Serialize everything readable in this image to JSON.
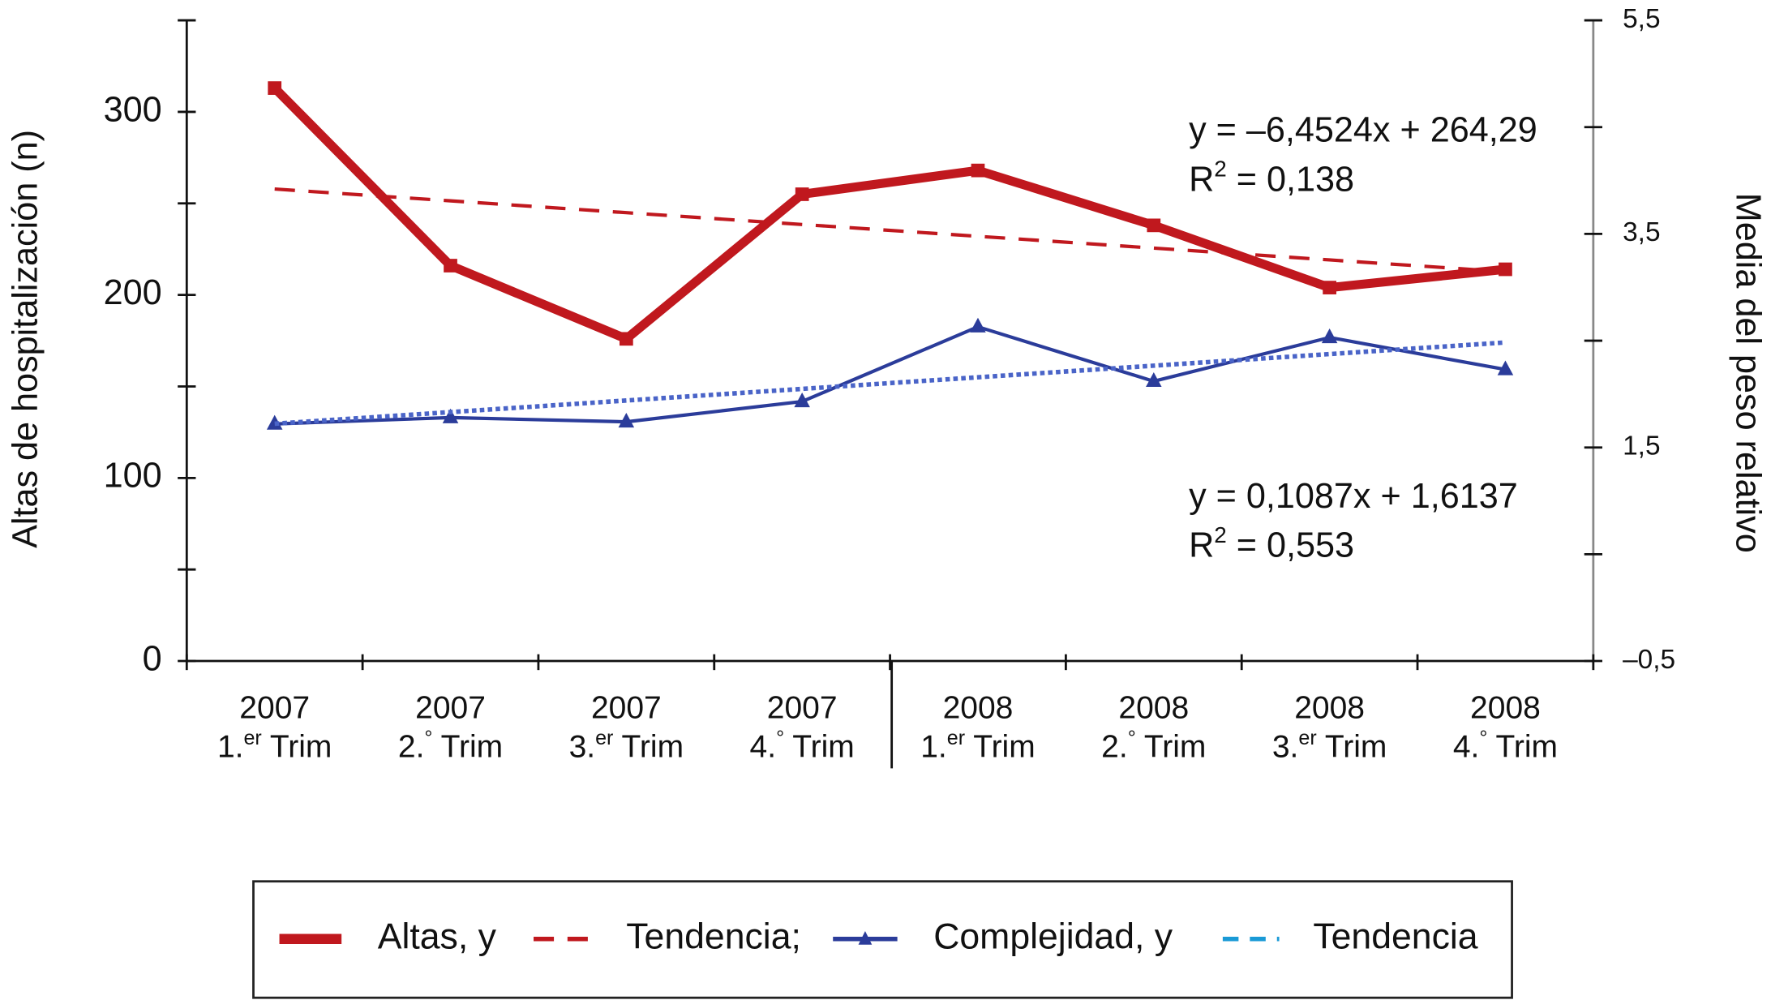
{
  "chart_data": {
    "type": "line",
    "y_label": "Altas de hospitalización (n)",
    "y2_label": "Media del peso relativo",
    "categories": [
      {
        "year": "2007",
        "num": "1.",
        "sup": "er",
        "trim": " Trim"
      },
      {
        "year": "2007",
        "num": "2.",
        "sup": "°",
        "trim": " Trim"
      },
      {
        "year": "2007",
        "num": "3.",
        "sup": "er",
        "trim": " Trim"
      },
      {
        "year": "2007",
        "num": "4.",
        "sup": "°",
        "trim": " Trim"
      },
      {
        "year": "2008",
        "num": "1.",
        "sup": "er",
        "trim": " Trim"
      },
      {
        "year": "2008",
        "num": "2.",
        "sup": "°",
        "trim": " Trim"
      },
      {
        "year": "2008",
        "num": "3.",
        "sup": "er",
        "trim": " Trim"
      },
      {
        "year": "2008",
        "num": "4.",
        "sup": "°",
        "trim": " Trim"
      }
    ],
    "series": [
      {
        "name": "Altas, y",
        "color": "#c0181e",
        "style": "solid",
        "width": 8,
        "marker": "square",
        "axis": "y",
        "values": [
          313,
          216,
          176,
          255,
          268,
          238,
          204,
          214
        ]
      },
      {
        "name": "Tendencia;",
        "color": "#c0181e",
        "style": "dashed",
        "width": 3,
        "axis": "y",
        "values": [
          257.84,
          251.39,
          244.93,
          238.48,
          232.03,
          225.58,
          219.12,
          212.67
        ]
      },
      {
        "name": "Complejidad, y",
        "color": "#2b3c9a",
        "style": "solid",
        "width": 3,
        "marker": "triangle",
        "axis": "y2",
        "values": [
          1.72,
          1.78,
          1.74,
          1.93,
          2.63,
          2.12,
          2.53,
          2.23
        ]
      },
      {
        "name": "Tendencia",
        "color": "#4a64c8",
        "legend_color": "#1a9ad6",
        "style": "dotted",
        "width": 4,
        "axis": "y2",
        "values": [
          1.7224,
          1.8311,
          1.9398,
          2.0485,
          2.1572,
          2.2659,
          2.3746,
          2.4833
        ]
      }
    ],
    "ylim": [
      0,
      350
    ],
    "yticks": [
      0,
      100,
      200,
      300
    ],
    "yminor_ticks": [
      50,
      150,
      250,
      350
    ],
    "y2lim": [
      -0.5,
      5.5
    ],
    "y2ticks": [
      {
        "value": 5.5,
        "label": "5,5"
      },
      {
        "value": 3.5,
        "label": "3,5"
      },
      {
        "value": 1.5,
        "label": "1,5"
      },
      {
        "value": -0.5,
        "label": "–0,5"
      }
    ],
    "y2minor_ticks": [
      4.5,
      2.5,
      0.5
    ],
    "annotations": [
      {
        "eq": "y = –6,4524x + 264,29",
        "r": "R",
        "sup": "2",
        "rval": " = 0,138",
        "axis": "y",
        "at": 300
      },
      {
        "eq": "y = 0,1087x + 1,6137",
        "r": "R",
        "sup": "2",
        "rval": " = 0,553",
        "axis": "y",
        "at": 100
      }
    ],
    "legend": "bottom"
  }
}
